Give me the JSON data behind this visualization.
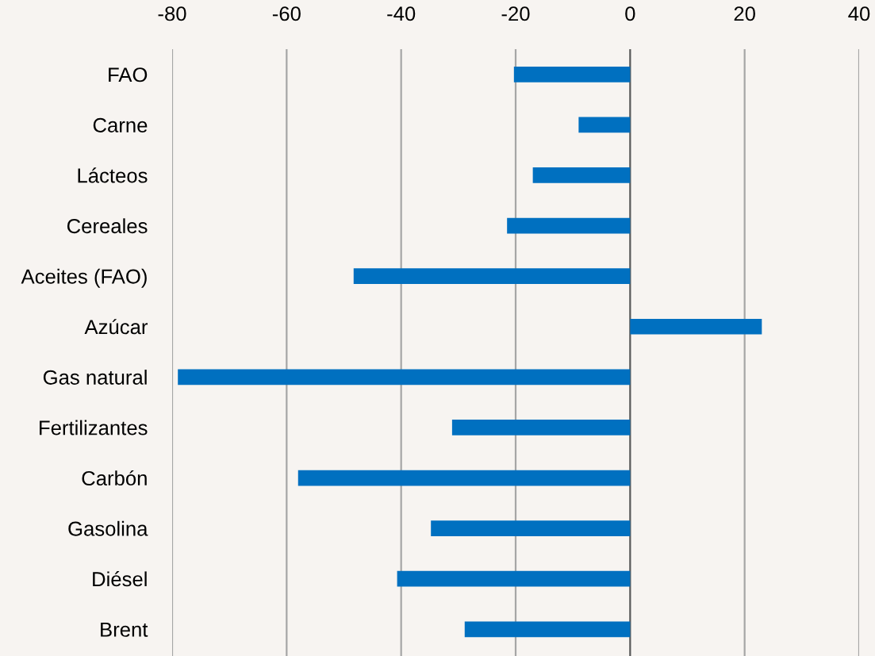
{
  "chart_data": {
    "type": "bar",
    "orientation": "horizontal",
    "categories": [
      "FAO",
      "Carne",
      "Lácteos",
      "Cereales",
      "Aceites (FAO)",
      "Azúcar",
      "Gas natural",
      "Fertilizantes",
      "Carbón",
      "Gasolina",
      "Diésel",
      "Brent"
    ],
    "series": [
      {
        "color": "#0070c0",
        "values": [
          -20.3,
          -9.0,
          -17.0,
          -21.5,
          -48.3,
          23.0,
          -79.0,
          -31.1,
          -58.0,
          -34.8,
          -40.7,
          -28.9
        ]
      }
    ],
    "xlim": [
      -80,
      40
    ],
    "xticks": [
      -80,
      -60,
      -40,
      -20,
      0,
      20,
      40
    ],
    "grid": "x",
    "legend": false
  }
}
